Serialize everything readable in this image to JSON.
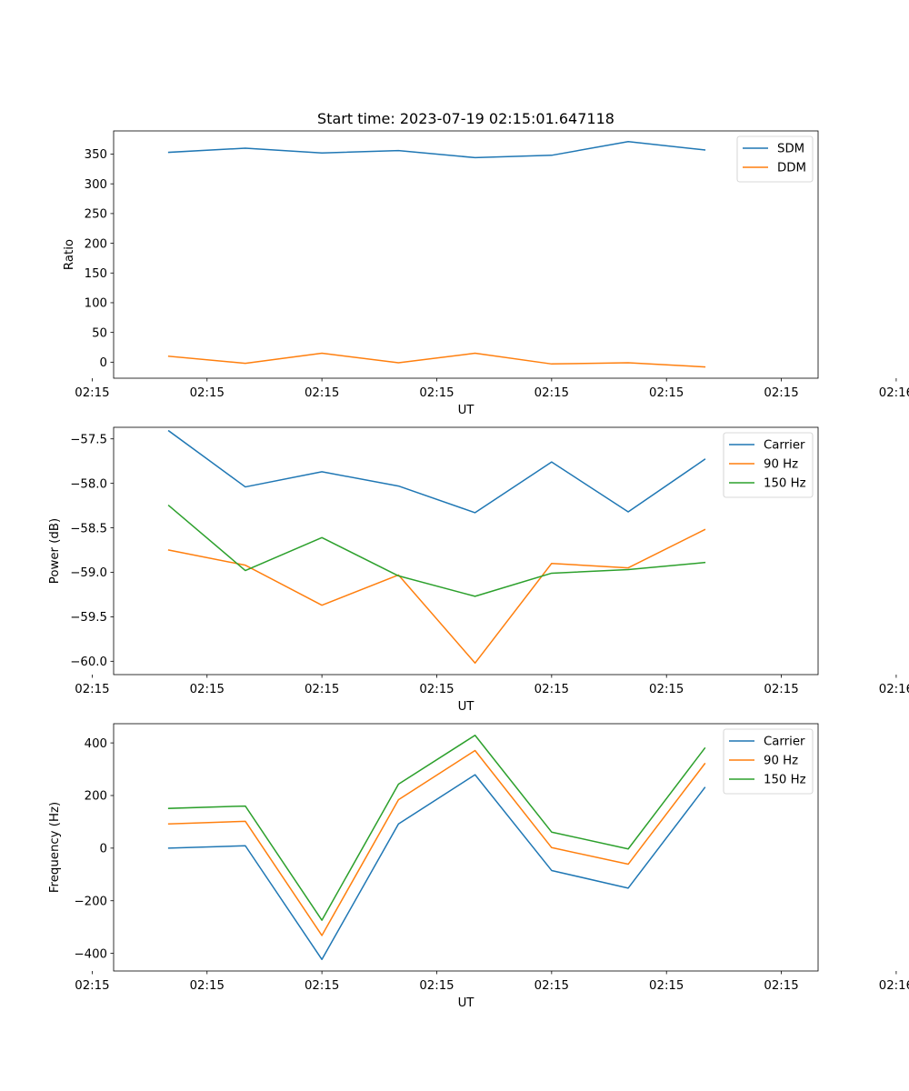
{
  "chart_data": [
    {
      "type": "line",
      "title": "Start time: 2023-07-19 02:15:01.647118",
      "xlabel": "UT",
      "ylabel": "Ratio",
      "legend": "top-right",
      "grid": false,
      "x": [
        1,
        2,
        3,
        4,
        5,
        6,
        7,
        8
      ],
      "xlim": [
        0.28,
        9.48
      ],
      "xticks": [
        {
          "value": 0,
          "label": "02:15"
        },
        {
          "value": 1.5,
          "label": "02:15"
        },
        {
          "value": 3,
          "label": "02:15"
        },
        {
          "value": 4.5,
          "label": "02:15"
        },
        {
          "value": 6,
          "label": "02:15"
        },
        {
          "value": 7.5,
          "label": "02:15"
        },
        {
          "value": 9,
          "label": "02:15"
        },
        {
          "value": 10.5,
          "label": "02:16"
        }
      ],
      "ylim": [
        -27,
        389
      ],
      "yticks": [
        {
          "value": 0,
          "label": "0"
        },
        {
          "value": 50,
          "label": "50"
        },
        {
          "value": 100,
          "label": "100"
        },
        {
          "value": 150,
          "label": "150"
        },
        {
          "value": 200,
          "label": "200"
        },
        {
          "value": 250,
          "label": "250"
        },
        {
          "value": 300,
          "label": "300"
        },
        {
          "value": 350,
          "label": "350"
        }
      ],
      "series": [
        {
          "name": "SDM",
          "color": "#1f77b4",
          "values": [
            353,
            360,
            352,
            356,
            344,
            348,
            371,
            357
          ]
        },
        {
          "name": "DDM",
          "color": "#ff7f0e",
          "values": [
            10,
            -2,
            15,
            -1,
            15,
            -3,
            -1,
            -8
          ]
        }
      ]
    },
    {
      "type": "line",
      "title": "",
      "xlabel": "UT",
      "ylabel": "Power (dB)",
      "legend": "top-right",
      "grid": false,
      "x": [
        1,
        2,
        3,
        4,
        5,
        6,
        7,
        8
      ],
      "xlim": [
        0.28,
        9.48
      ],
      "xticks": [
        {
          "value": 0,
          "label": "02:15"
        },
        {
          "value": 1.5,
          "label": "02:15"
        },
        {
          "value": 3,
          "label": "02:15"
        },
        {
          "value": 4.5,
          "label": "02:15"
        },
        {
          "value": 6,
          "label": "02:15"
        },
        {
          "value": 7.5,
          "label": "02:15"
        },
        {
          "value": 9,
          "label": "02:15"
        },
        {
          "value": 10.5,
          "label": "02:16"
        }
      ],
      "ylim": [
        -60.15,
        -57.37
      ],
      "yticks": [
        {
          "value": -60.0,
          "label": "−60.0"
        },
        {
          "value": -59.5,
          "label": "−59.5"
        },
        {
          "value": -59.0,
          "label": "−59.0"
        },
        {
          "value": -58.5,
          "label": "−58.5"
        },
        {
          "value": -58.0,
          "label": "−58.0"
        },
        {
          "value": -57.5,
          "label": "−57.5"
        }
      ],
      "series": [
        {
          "name": "Carrier",
          "color": "#1f77b4",
          "values": [
            -57.41,
            -58.04,
            -57.87,
            -58.03,
            -58.33,
            -57.76,
            -58.32,
            -57.73
          ]
        },
        {
          "name": "90 Hz",
          "color": "#ff7f0e",
          "values": [
            -58.75,
            -58.92,
            -59.37,
            -59.03,
            -60.02,
            -58.9,
            -58.95,
            -58.52
          ]
        },
        {
          "name": "150 Hz",
          "color": "#2ca02c",
          "values": [
            -58.25,
            -58.98,
            -58.61,
            -59.04,
            -59.27,
            -59.01,
            -58.97,
            -58.89
          ]
        }
      ]
    },
    {
      "type": "line",
      "title": "",
      "xlabel": "UT",
      "ylabel": "Frequency (Hz)",
      "legend": "top-right",
      "grid": false,
      "x": [
        1,
        2,
        3,
        4,
        5,
        6,
        7,
        8
      ],
      "xlim": [
        0.28,
        9.48
      ],
      "xticks": [
        {
          "value": 0,
          "label": "02:15"
        },
        {
          "value": 1.5,
          "label": "02:15"
        },
        {
          "value": 3,
          "label": "02:15"
        },
        {
          "value": 4.5,
          "label": "02:15"
        },
        {
          "value": 6,
          "label": "02:15"
        },
        {
          "value": 7.5,
          "label": "02:15"
        },
        {
          "value": 9,
          "label": "02:15"
        },
        {
          "value": 10.5,
          "label": "02:16"
        }
      ],
      "ylim": [
        -467,
        473
      ],
      "yticks": [
        {
          "value": -400,
          "label": "−400"
        },
        {
          "value": -200,
          "label": "−200"
        },
        {
          "value": 0,
          "label": "0"
        },
        {
          "value": 200,
          "label": "200"
        },
        {
          "value": 400,
          "label": "400"
        }
      ],
      "series": [
        {
          "name": "Carrier",
          "color": "#1f77b4",
          "values": [
            0,
            9,
            -423,
            92,
            279,
            -85,
            -152,
            230
          ]
        },
        {
          "name": "90 Hz",
          "color": "#ff7f0e",
          "values": [
            92,
            102,
            -332,
            184,
            371,
            2,
            -61,
            321
          ]
        },
        {
          "name": "150 Hz",
          "color": "#2ca02c",
          "values": [
            151,
            160,
            -274,
            243,
            429,
            61,
            -3,
            380
          ]
        }
      ]
    }
  ]
}
